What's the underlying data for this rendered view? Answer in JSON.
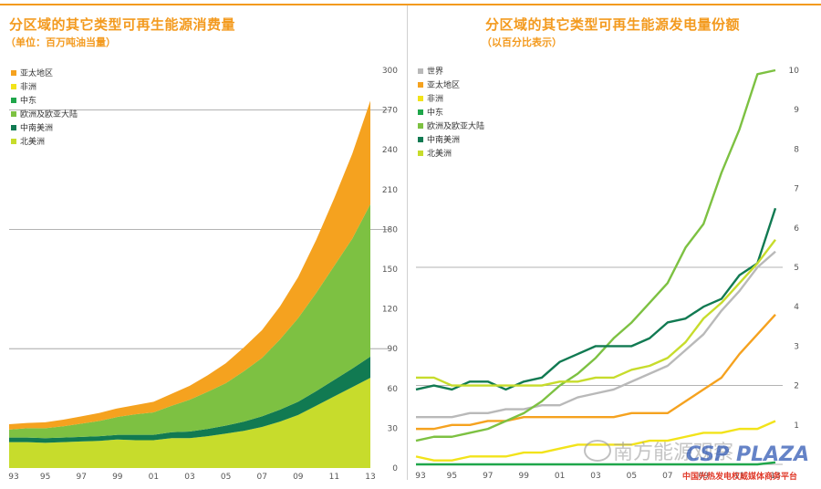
{
  "left_title": "分区域的其它类型可再生能源消费量",
  "left_subtitle": "（单位：百万吨油当量）",
  "right_title": "分区域的其它类型可再生能源发电量份额",
  "right_subtitle": "（以百分比表示）",
  "watermark": {
    "text": "南方能源观察",
    "brand": "CSP PLAZA",
    "sub": "中国光热发电权威媒体商务平台"
  },
  "colors": {
    "asia_pacific": "#f5a21f",
    "africa": "#f2e31a",
    "middle_east": "#1fa64a",
    "europe_eurasia": "#7dc142",
    "south_central_america": "#117a52",
    "north_america": "#c7dc2c",
    "world": "#b9b9b9"
  },
  "chart_data": [
    {
      "type": "area",
      "title": "分区域的其它类型可再生能源消费量",
      "subtitle": "（单位：百万吨油当量）",
      "stacked": true,
      "x": [
        "93",
        "94",
        "95",
        "96",
        "97",
        "98",
        "99",
        "00",
        "01",
        "02",
        "03",
        "04",
        "05",
        "06",
        "07",
        "08",
        "09",
        "10",
        "11",
        "12",
        "13"
      ],
      "x_tick_labels": [
        "93",
        "95",
        "97",
        "99",
        "01",
        "03",
        "05",
        "07",
        "09",
        "11",
        "13"
      ],
      "ylim": [
        0,
        300
      ],
      "y_ticks": [
        0,
        30,
        60,
        90,
        120,
        150,
        180,
        210,
        240,
        270,
        300
      ],
      "y_axis_side": "right",
      "grid": true,
      "legend_position": "top-left",
      "legend_order": [
        "亚太地区",
        "非洲",
        "中东",
        "欧洲及欧亚大陆",
        "中南美洲",
        "北美洲"
      ],
      "series": [
        {
          "name": "北美洲",
          "color_key": "north_america",
          "values": [
            19.5,
            19.5,
            19,
            19.5,
            20,
            20.5,
            21.5,
            21,
            21,
            22.5,
            22.5,
            24,
            26,
            28,
            31,
            35,
            40,
            47,
            54,
            61,
            68
          ]
        },
        {
          "name": "中南美洲",
          "color_key": "south_central_america",
          "values": [
            3.5,
            3.5,
            3.5,
            3.5,
            3.5,
            3.5,
            3.5,
            4,
            4,
            4.5,
            5,
            5.5,
            6,
            7,
            8,
            9,
            10,
            11,
            12.5,
            14,
            16
          ]
        },
        {
          "name": "中东",
          "color_key": "middle_east",
          "values": [
            0,
            0,
            0,
            0,
            0,
            0,
            0,
            0,
            0,
            0,
            0,
            0,
            0,
            0,
            0,
            0,
            0,
            0,
            0,
            0,
            0
          ]
        },
        {
          "name": "欧洲及欧亚大陆",
          "color_key": "europe_eurasia",
          "values": [
            6,
            7,
            7.5,
            8.5,
            10,
            11.5,
            13.5,
            15.5,
            17,
            20,
            24,
            28,
            32,
            38,
            44,
            53,
            63,
            74,
            86,
            98,
            115
          ]
        },
        {
          "name": "非洲",
          "color_key": "africa",
          "values": [
            0,
            0,
            0,
            0,
            0,
            0,
            0,
            0,
            0,
            0,
            0,
            0,
            0,
            0,
            0,
            0,
            0,
            0,
            0,
            0,
            0
          ]
        },
        {
          "name": "亚太地区",
          "color_key": "asia_pacific",
          "values": [
            4,
            4,
            4.5,
            5,
            5.5,
            6,
            6.5,
            7,
            8,
            9,
            10.5,
            12.5,
            15,
            18,
            21,
            25,
            31,
            40,
            51,
            64,
            78
          ]
        }
      ]
    },
    {
      "type": "line",
      "title": "分区域的其它类型可再生能源发电量份额",
      "subtitle": "（以百分比表示）",
      "x": [
        "93",
        "94",
        "95",
        "96",
        "97",
        "98",
        "99",
        "00",
        "01",
        "02",
        "03",
        "04",
        "05",
        "06",
        "07",
        "08",
        "09",
        "10",
        "11",
        "12",
        "13"
      ],
      "x_tick_labels": [
        "93",
        "95",
        "97",
        "99",
        "01",
        "03",
        "05",
        "07",
        "09",
        "11",
        "13"
      ],
      "ylim": [
        0,
        10
      ],
      "y_ticks": [
        1,
        2,
        3,
        4,
        5,
        6,
        7,
        8,
        9,
        10
      ],
      "y_axis_side": "right",
      "grid": true,
      "legend_position": "top-left",
      "legend_order": [
        "世界",
        "亚太地区",
        "非洲",
        "中东",
        "欧洲及欧亚大陆",
        "中南美洲",
        "北美洲"
      ],
      "series": [
        {
          "name": "世界",
          "color_key": "world",
          "values": [
            1.2,
            1.2,
            1.2,
            1.3,
            1.3,
            1.4,
            1.4,
            1.5,
            1.5,
            1.7,
            1.8,
            1.9,
            2.1,
            2.3,
            2.5,
            2.9,
            3.3,
            3.9,
            4.4,
            5.0,
            5.4
          ]
        },
        {
          "name": "亚太地区",
          "color_key": "asia_pacific",
          "values": [
            0.9,
            0.9,
            1.0,
            1.0,
            1.1,
            1.1,
            1.2,
            1.2,
            1.2,
            1.2,
            1.2,
            1.2,
            1.3,
            1.3,
            1.3,
            1.6,
            1.9,
            2.2,
            2.8,
            3.3,
            3.8
          ]
        },
        {
          "name": "非洲",
          "color_key": "africa",
          "values": [
            0.2,
            0.1,
            0.1,
            0.2,
            0.2,
            0.2,
            0.3,
            0.3,
            0.4,
            0.5,
            0.5,
            0.5,
            0.5,
            0.6,
            0.6,
            0.7,
            0.8,
            0.8,
            0.9,
            0.9,
            1.1
          ]
        },
        {
          "name": "中东",
          "color_key": "middle_east",
          "values": [
            0,
            0,
            0,
            0,
            0,
            0,
            0,
            0,
            0,
            0,
            0,
            0,
            0,
            0,
            0,
            0,
            0,
            0,
            0,
            0,
            0.05
          ]
        },
        {
          "name": "欧洲及欧亚大陆",
          "color_key": "europe_eurasia",
          "values": [
            0.6,
            0.7,
            0.7,
            0.8,
            0.9,
            1.1,
            1.3,
            1.6,
            2.0,
            2.3,
            2.7,
            3.2,
            3.6,
            4.1,
            4.6,
            5.5,
            6.1,
            7.4,
            8.5,
            9.9,
            10.0
          ]
        },
        {
          "name": "中南美洲",
          "color_key": "south_central_america",
          "values": [
            1.9,
            2.0,
            1.9,
            2.1,
            2.1,
            1.9,
            2.1,
            2.2,
            2.6,
            2.8,
            3.0,
            3.0,
            3.0,
            3.2,
            3.6,
            3.7,
            4.0,
            4.2,
            4.8,
            5.1,
            6.5
          ]
        },
        {
          "name": "北美洲",
          "color_key": "north_america",
          "values": [
            2.2,
            2.2,
            2.0,
            2.0,
            2.0,
            2.0,
            2.0,
            2.0,
            2.1,
            2.1,
            2.2,
            2.2,
            2.4,
            2.5,
            2.7,
            3.1,
            3.7,
            4.1,
            4.6,
            5.1,
            5.7
          ]
        }
      ]
    }
  ]
}
